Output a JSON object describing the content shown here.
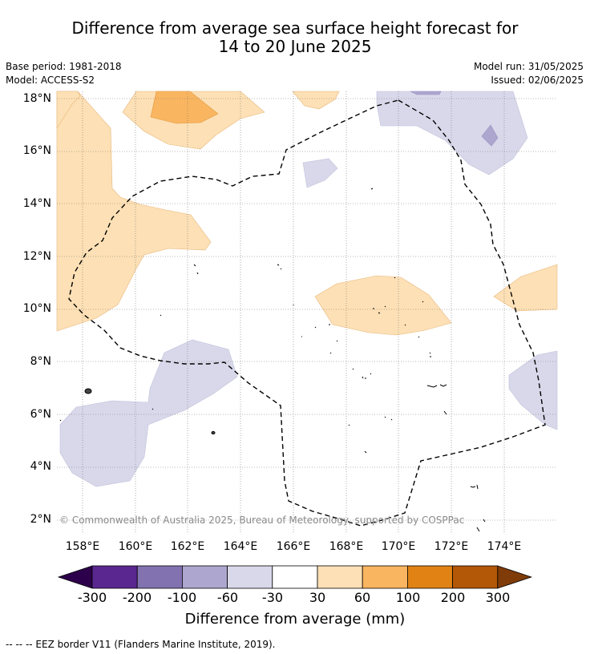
{
  "title": {
    "line1": "Difference from average sea surface height forecast for",
    "line2": "14 to 20 June 2025"
  },
  "meta": {
    "base_period": "Base period: 1981-2018",
    "model": "Model: ACCESS-S2",
    "model_run": "Model run: 31/05/2025",
    "issued": "Issued: 02/06/2025"
  },
  "map": {
    "lat_labels": [
      "18°N",
      "16°N",
      "14°N",
      "12°N",
      "10°N",
      "8°N",
      "6°N",
      "4°N",
      "2°N"
    ],
    "lon_labels": [
      "158°E",
      "160°E",
      "162°E",
      "164°E",
      "166°E",
      "168°E",
      "170°E",
      "172°E",
      "174°E"
    ],
    "copyright": "© Commonwealth of Australia 2025, Bureau of Meteorology, supported by COSPPac"
  },
  "colorbar": {
    "title": "Difference from average (mm)",
    "tick_labels": [
      "-300",
      "-200",
      "-100",
      "-60",
      "-30",
      "30",
      "60",
      "100",
      "200",
      "300"
    ],
    "colors": [
      "#2d004b",
      "#5a2790",
      "#8272b0",
      "#ada6cf",
      "#d8d8ea",
      "#ffffff",
      "#fde0b5",
      "#f9b560",
      "#e08214",
      "#b35806",
      "#7f3b08"
    ]
  },
  "footer": {
    "legend": "--  --  -- EEZ border V11 (Flanders Marine Institute, 2019)."
  }
}
